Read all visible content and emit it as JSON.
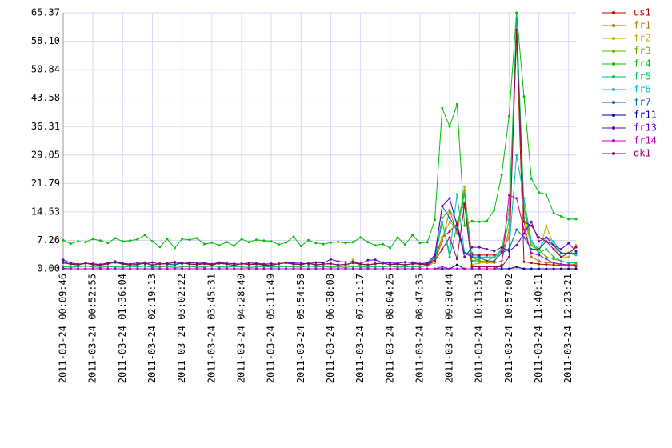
{
  "chart_data": {
    "type": "line",
    "categories": [
      "2011-03-24 00:09:46",
      null,
      null,
      null,
      "2011-03-24 00:52:55",
      null,
      null,
      null,
      "2011-03-24 01:36:04",
      null,
      null,
      null,
      "2011-03-24 02:19:13",
      null,
      null,
      null,
      "2011-03-24 03:02:22",
      null,
      null,
      null,
      "2011-03-24 03:45:31",
      null,
      null,
      null,
      "2011-03-24 04:28:40",
      null,
      null,
      null,
      "2011-03-24 05:11:49",
      null,
      null,
      null,
      "2011-03-24 05:54:58",
      null,
      null,
      null,
      "2011-03-24 06:38:08",
      null,
      null,
      null,
      "2011-03-24 07:21:17",
      null,
      null,
      null,
      "2011-03-24 08:04:26",
      null,
      null,
      null,
      "2011-03-24 08:47:35",
      null,
      null,
      null,
      "2011-03-24 09:30:44",
      null,
      null,
      null,
      "2011-03-24 10:13:53",
      null,
      null,
      null,
      "2011-03-24 10:57:02",
      null,
      null,
      null,
      "2011-03-24 11:40:11",
      null,
      null,
      null,
      "2011-03-24 12:23:21",
      null
    ],
    "ylim": [
      0,
      65.37
    ],
    "yticks": [
      {
        "value": 0,
        "label": "0.00"
      },
      7.26,
      14.53,
      21.79,
      29.05,
      36.31,
      43.58,
      50.84,
      {
        "value": 58.1,
        "label": "58.10"
      },
      65.37
    ],
    "grid": true,
    "legend": "right",
    "series": [
      {
        "name": "us1",
        "color": "#c00000",
        "values": [
          1.5,
          1.2,
          1,
          1.4,
          1.1,
          0.9,
          1.3,
          1.6,
          1.2,
          1,
          1.1,
          1.4,
          0.9,
          1.3,
          1.2,
          1,
          1.5,
          1.2,
          1.1,
          1.3,
          1,
          1.4,
          1.2,
          0.9,
          1.3,
          1.1,
          1.2,
          1,
          0.9,
          1.3,
          1.5,
          1.2,
          1.1,
          1.4,
          1,
          1.2,
          1.3,
          1,
          1.1,
          1.5,
          1.2,
          1,
          1.3,
          1.4,
          1.1,
          1.2,
          1,
          1.3,
          1.2,
          1,
          2.5,
          8,
          9.5,
          11.5,
          4,
          3.5,
          3.5,
          3.5,
          3.5,
          4.5,
          8,
          60,
          1.8,
          1.5,
          1.2,
          1.1,
          1,
          0.9,
          0.8,
          1
        ]
      },
      {
        "name": "fr1",
        "color": "#c07000",
        "values": [
          0.6,
          0.4,
          0.5,
          0.7,
          0.5,
          0.3,
          0.6,
          0.5,
          0.4,
          0.6,
          0.5,
          0.7,
          0.4,
          0.5,
          0.6,
          0.3,
          0.5,
          0.6,
          0.4,
          0.5,
          0.7,
          0.5,
          0.4,
          0.6,
          0.5,
          0.3,
          0.5,
          0.6,
          0.4,
          0.5,
          0.6,
          0.5,
          0.4,
          0.7,
          0.5,
          0.6,
          0.4,
          0.5,
          0.3,
          0.6,
          0.5,
          0.4,
          0.6,
          0.5,
          0.7,
          0.4,
          0.5,
          0.6,
          0.5,
          1,
          2,
          7,
          15,
          9,
          20,
          3,
          2,
          1.5,
          1.5,
          2,
          10,
          60,
          12,
          3,
          2,
          1.5,
          1.5,
          1,
          1,
          1.2
        ]
      },
      {
        "name": "fr2",
        "color": "#b0b000",
        "values": [
          0.6,
          0.4,
          0.5,
          0.7,
          0.5,
          0.3,
          0.6,
          0.5,
          0.4,
          0.6,
          0.5,
          0.7,
          0.4,
          0.5,
          0.6,
          0.3,
          0.5,
          0.6,
          0.4,
          0.5,
          0.7,
          0.5,
          0.4,
          0.6,
          0.5,
          0.3,
          0.5,
          0.6,
          0.4,
          0.5,
          0.6,
          0.5,
          0.4,
          0.7,
          0.5,
          0.6,
          0.4,
          0.5,
          0.3,
          2.3,
          0.5,
          0.4,
          0.6,
          0.5,
          0.7,
          0.4,
          0.5,
          0.6,
          0.5,
          0.8,
          1.5,
          8,
          12,
          10,
          21,
          1,
          1.5,
          1.5,
          2,
          5,
          8,
          60,
          15,
          6,
          4,
          11,
          6,
          3,
          3,
          6
        ]
      },
      {
        "name": "fr3",
        "color": "#60b000",
        "values": [
          1.5,
          1.2,
          1,
          1.4,
          1.1,
          0.9,
          1.3,
          1.6,
          1.2,
          1,
          1.1,
          1.4,
          0.9,
          1.3,
          1.2,
          1,
          1.5,
          1.2,
          1.1,
          1.3,
          1,
          1.4,
          1.2,
          0.9,
          1.3,
          1.1,
          1.2,
          1,
          0.9,
          1.3,
          1.5,
          1.2,
          1.1,
          1.4,
          1,
          1.2,
          1.3,
          1,
          1.1,
          1.5,
          1.2,
          1,
          1.3,
          1.4,
          1.1,
          1.2,
          1,
          1.3,
          1.2,
          1,
          3,
          13,
          15,
          12,
          17,
          2,
          2,
          2,
          3,
          5,
          15,
          58,
          13,
          6,
          5,
          3,
          2.5,
          2,
          1.5,
          1.5
        ]
      },
      {
        "name": "fr4",
        "color": "#00c000",
        "values": [
          7.3,
          6.4,
          7,
          6.8,
          7.6,
          7.2,
          6.6,
          7.8,
          7,
          7.2,
          7.5,
          8.6,
          7,
          5.6,
          7.6,
          5.3,
          7.6,
          7.4,
          7.8,
          6.3,
          6.7,
          6,
          6.8,
          5.9,
          7.6,
          6.8,
          7.4,
          7.2,
          7,
          6.2,
          6.7,
          8.2,
          5.8,
          7.3,
          6.6,
          6.3,
          6.7,
          6.9,
          6.6,
          6.8,
          8,
          6.8,
          6,
          6.3,
          5.3,
          8,
          6.2,
          8.6,
          6.6,
          6.8,
          12.5,
          41,
          36.3,
          42,
          11,
          12.2,
          12,
          12.2,
          15,
          24,
          39,
          65.37,
          44,
          23,
          19.5,
          19,
          14.2,
          13.4,
          12.7,
          12.7
        ]
      },
      {
        "name": "fr5",
        "color": "#00c060",
        "values": [
          0.6,
          0.4,
          0.5,
          0.7,
          0.5,
          0.3,
          0.6,
          0.5,
          0.4,
          0.6,
          0.5,
          0.7,
          0.4,
          0.5,
          0.6,
          0.3,
          0.5,
          0.6,
          0.4,
          0.5,
          0.7,
          0.5,
          0.4,
          0.6,
          0.5,
          0.3,
          0.5,
          0.6,
          0.4,
          0.5,
          0.6,
          0.5,
          0.4,
          0.7,
          0.5,
          0.6,
          0.4,
          0.5,
          0.3,
          0.6,
          0.5,
          0.4,
          0.6,
          0.5,
          0.7,
          0.4,
          0.5,
          0.6,
          0.5,
          0.8,
          2,
          12,
          3,
          11,
          19,
          2,
          2.5,
          3,
          3,
          4,
          12.5,
          64,
          16,
          7,
          4,
          5,
          3,
          2,
          1.5,
          1.5
        ]
      },
      {
        "name": "fr6",
        "color": "#00c0c0",
        "values": [
          1.5,
          1.2,
          1,
          1.4,
          1.1,
          0.9,
          1.3,
          1.6,
          1.2,
          1,
          1.1,
          1.4,
          0.9,
          1.3,
          1.2,
          1,
          1.5,
          1.2,
          1.1,
          1.3,
          1,
          1.4,
          1.2,
          0.9,
          1.3,
          1.1,
          1.2,
          1,
          0.9,
          1.3,
          1.5,
          1.2,
          1.1,
          1.4,
          1,
          1.2,
          1.3,
          1,
          1.1,
          1.5,
          1.2,
          1,
          1.3,
          1.4,
          1.1,
          1.2,
          1,
          1.3,
          1.2,
          1,
          3,
          12,
          4,
          19,
          4,
          4,
          3,
          3,
          3,
          5,
          5,
          29,
          18,
          7,
          5,
          8,
          7,
          4,
          4,
          3.5
        ]
      },
      {
        "name": "fr7",
        "color": "#0060c0",
        "values": [
          1.5,
          1.2,
          1,
          1.4,
          1.1,
          0.9,
          1.3,
          1.6,
          1.2,
          1,
          1.1,
          1.4,
          0.9,
          1.3,
          1.2,
          1,
          1.5,
          1.2,
          1.1,
          1.3,
          1,
          1.4,
          1.2,
          0.9,
          1.3,
          1.1,
          1.2,
          1,
          0.9,
          1.3,
          1.5,
          1.2,
          1.1,
          1.4,
          1,
          1.2,
          1.3,
          1,
          1.1,
          1.5,
          1.2,
          1,
          1.3,
          1.4,
          1.1,
          1.2,
          1,
          1.3,
          1.2,
          1.2,
          3,
          16,
          13,
          10,
          4,
          3,
          3,
          2,
          2,
          4,
          5,
          10,
          8,
          5,
          5,
          7,
          6,
          4,
          4,
          4
        ]
      },
      {
        "name": "fr11",
        "color": "#0000a0",
        "values": [
          0.1,
          0,
          0,
          0,
          0,
          0,
          0,
          0,
          0,
          0,
          0,
          0,
          0,
          0,
          0,
          0,
          0,
          0,
          0,
          0,
          0,
          0,
          0,
          0,
          0,
          0,
          0,
          0,
          0,
          0,
          0,
          0,
          0,
          0,
          0,
          0,
          0,
          0,
          0,
          0,
          0,
          0,
          0,
          0,
          0,
          0,
          0,
          0,
          0,
          0,
          0,
          0,
          0,
          1,
          0,
          0,
          0,
          0,
          0,
          0,
          0,
          0.5,
          0,
          0,
          0,
          0,
          0,
          0,
          0,
          0
        ]
      },
      {
        "name": "fr13",
        "color": "#6000c0",
        "values": [
          2.3,
          1.5,
          1.2,
          1.4,
          1.3,
          1.1,
          1.5,
          1.8,
          1.4,
          1.2,
          1.5,
          1.3,
          1.6,
          1.2,
          1.4,
          1.5,
          1.3,
          1.6,
          1.4,
          1.5,
          1.2,
          1.6,
          1.4,
          1.3,
          1.2,
          1.5,
          1.4,
          1.2,
          1.3,
          1.2,
          1.6,
          1.5,
          1.4,
          1.3,
          1.6,
          1.5,
          2.4,
          1.9,
          1.7,
          1.8,
          1.3,
          2.2,
          2.3,
          1.6,
          1.5,
          1.4,
          1.7,
          1.6,
          1.3,
          1.5,
          3.5,
          16,
          18,
          11,
          3,
          5.5,
          5.5,
          5,
          4.5,
          5.5,
          4.5,
          6,
          9,
          12,
          7,
          8,
          6,
          5,
          6.5,
          4.5
        ]
      },
      {
        "name": "fr14",
        "color": "#c000c0",
        "values": [
          0,
          0,
          0,
          0,
          0,
          0,
          0,
          0,
          0,
          0,
          0,
          0,
          0,
          0,
          0,
          0,
          0,
          0,
          0,
          0,
          0,
          0,
          0,
          0,
          0,
          0,
          0,
          0,
          0,
          0,
          0,
          0,
          0,
          0,
          0,
          0,
          0,
          0,
          0,
          0,
          0,
          0,
          0,
          0,
          0,
          0,
          0,
          0,
          0,
          0,
          0,
          0.5,
          0,
          0,
          0,
          0,
          0,
          0,
          0,
          1,
          18.8,
          18,
          10,
          4,
          3.5,
          2.5,
          1.5,
          1.2,
          1,
          0.6
        ]
      },
      {
        "name": "dk1",
        "color": "#a00060",
        "values": [
          1.8,
          1.2,
          1,
          1.4,
          1.1,
          0.9,
          1.3,
          1.9,
          1.2,
          1,
          1.1,
          1.6,
          0.9,
          1.3,
          1.2,
          1.8,
          1.5,
          1.2,
          1.1,
          1.3,
          1,
          1.4,
          1.2,
          0.9,
          1.3,
          1.1,
          1.2,
          1,
          0.9,
          1.3,
          1.5,
          1.2,
          1.1,
          1.4,
          1,
          1.2,
          1.3,
          1,
          1.1,
          1.5,
          1.2,
          1,
          1.3,
          1.4,
          1.1,
          1.2,
          1,
          1.3,
          1.2,
          1,
          2,
          5,
          8,
          2.5,
          16.5,
          0.5,
          0.5,
          0.5,
          0.5,
          0.5,
          3,
          61,
          12,
          11,
          8,
          7,
          5,
          3,
          4,
          5.5
        ]
      }
    ]
  }
}
